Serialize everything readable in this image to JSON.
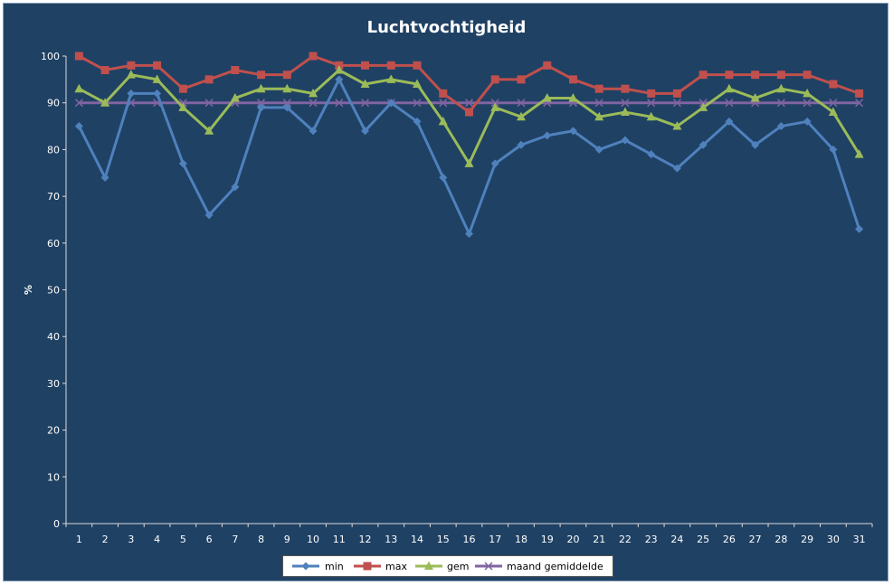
{
  "chart_data": {
    "type": "line",
    "title": "Luchtvochtigheid",
    "ylabel": "%",
    "xlabel": "",
    "ylim": [
      0,
      100
    ],
    "yticks": [
      0,
      10,
      20,
      30,
      40,
      50,
      60,
      70,
      80,
      90,
      100
    ],
    "categories": [
      "1",
      "2",
      "3",
      "4",
      "5",
      "6",
      "7",
      "8",
      "9",
      "10",
      "11",
      "12",
      "13",
      "14",
      "15",
      "16",
      "17",
      "18",
      "19",
      "20",
      "21",
      "22",
      "23",
      "24",
      "25",
      "26",
      "27",
      "28",
      "29",
      "30",
      "31"
    ],
    "grid": false,
    "legend": "bottom",
    "series": [
      {
        "name": "min",
        "color": "#4f81bd",
        "marker": "diamond",
        "values": [
          85,
          74,
          92,
          92,
          77,
          66,
          72,
          89,
          89,
          84,
          95,
          84,
          90,
          86,
          74,
          62,
          77,
          81,
          83,
          84,
          80,
          82,
          79,
          76,
          81,
          86,
          81,
          85,
          86,
          80,
          63
        ]
      },
      {
        "name": "max",
        "color": "#c0504d",
        "marker": "square",
        "values": [
          100,
          97,
          98,
          98,
          93,
          95,
          97,
          96,
          96,
          100,
          98,
          98,
          98,
          98,
          92,
          88,
          95,
          95,
          98,
          95,
          93,
          93,
          92,
          92,
          96,
          96,
          96,
          96,
          96,
          94,
          92
        ]
      },
      {
        "name": "gem",
        "color": "#9bbb59",
        "marker": "triangle",
        "values": [
          93,
          90,
          96,
          95,
          89,
          84,
          91,
          93,
          93,
          92,
          97,
          94,
          95,
          94,
          86,
          77,
          89,
          87,
          91,
          91,
          87,
          88,
          87,
          85,
          89,
          93,
          91,
          93,
          92,
          88,
          79
        ]
      },
      {
        "name": "maand gemiddelde",
        "color": "#8064a2",
        "marker": "x",
        "values": [
          90,
          90,
          90,
          90,
          90,
          90,
          90,
          90,
          90,
          90,
          90,
          90,
          90,
          90,
          90,
          90,
          90,
          90,
          90,
          90,
          90,
          90,
          90,
          90,
          90,
          90,
          90,
          90,
          90,
          90,
          90
        ]
      }
    ]
  }
}
